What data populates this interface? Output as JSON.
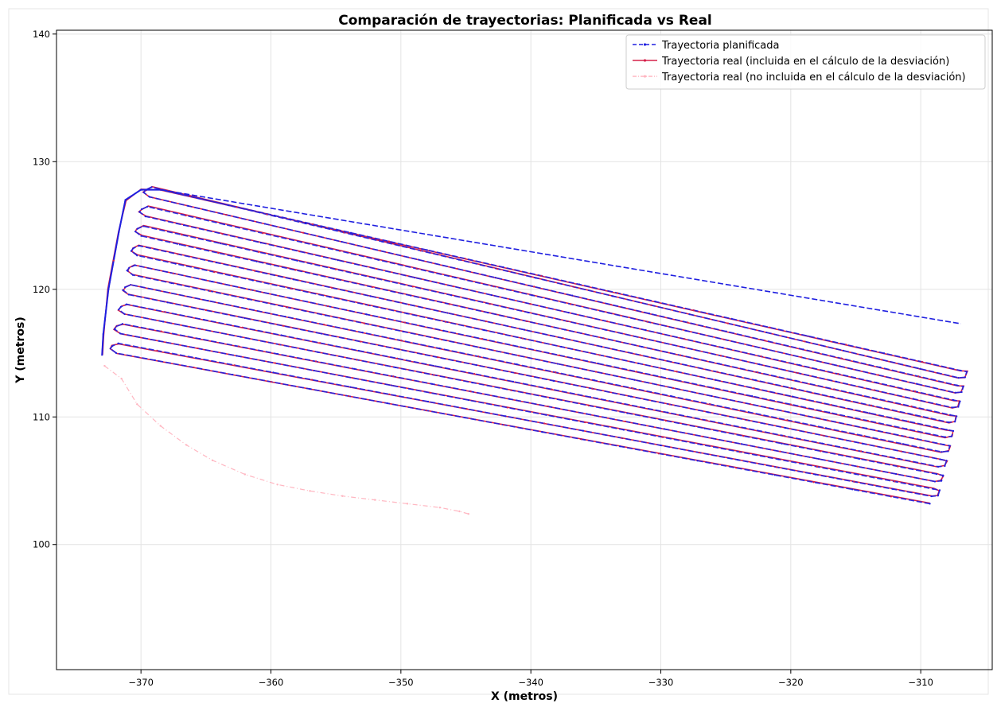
{
  "chart_data": {
    "type": "line",
    "title": "Comparación de trayectorias: Planificada vs Real",
    "xlabel": "X (metros)",
    "ylabel": "Y (metros)",
    "xlim": [
      -376.5,
      -304.5
    ],
    "ylim": [
      90.2,
      140.3
    ],
    "xticks": [
      -370,
      -360,
      -350,
      -340,
      -330,
      -320,
      -310
    ],
    "yticks": [
      100,
      110,
      120,
      130,
      140
    ],
    "xtick_labels": [
      "−370",
      "−360",
      "−350",
      "−340",
      "−330",
      "−320",
      "−310"
    ],
    "ytick_labels": [
      "100",
      "110",
      "120",
      "130",
      "140"
    ],
    "grid": true,
    "legend_position": "top-right",
    "pass_geometry": {
      "left_start": [
        -371.9,
        115.0
      ],
      "left_step": [
        0.32,
        1.53
      ],
      "right_start": [
        -309.3,
        103.2
      ],
      "right_step": [
        0.26,
        1.16
      ],
      "passes": 9
    },
    "loop_path": [
      [
        -309.3,
        103.2
      ],
      [
        -371.9,
        115.0
      ],
      [
        -373.0,
        114.8
      ],
      [
        -372.9,
        116.5
      ],
      [
        -372.5,
        120.0
      ],
      [
        -371.7,
        124.5
      ],
      [
        -371.2,
        127.0
      ],
      [
        -370.0,
        127.8
      ],
      [
        -368.5,
        127.8
      ],
      [
        -306.9,
        117.3
      ]
    ],
    "offtrack_path": [
      [
        -372.8,
        114.0
      ],
      [
        -371.5,
        113.0
      ],
      [
        -370.3,
        111.0
      ],
      [
        -368.5,
        109.3
      ],
      [
        -366.5,
        107.8
      ],
      [
        -364.5,
        106.6
      ],
      [
        -362.0,
        105.5
      ],
      [
        -359.5,
        104.7
      ],
      [
        -357.0,
        104.2
      ],
      [
        -354.5,
        103.8
      ],
      [
        -352.0,
        103.5
      ],
      [
        -349.5,
        103.2
      ],
      [
        -347.0,
        102.9
      ],
      [
        -345.5,
        102.6
      ],
      [
        -344.8,
        102.4
      ]
    ],
    "series": [
      {
        "name": "Trayectoria planificada",
        "color": "#1f1fe0",
        "style": "dashed",
        "marker": "dot"
      },
      {
        "name": "Trayectoria real (incluida en el cálculo de la desviación)",
        "color": "#d6204a",
        "style": "solid",
        "marker": "dot"
      },
      {
        "name": "Trayectoria real (no incluida en el cálculo de la desviación)",
        "color": "#ffb6c1",
        "style": "dash-dot",
        "marker": "dot"
      }
    ]
  }
}
